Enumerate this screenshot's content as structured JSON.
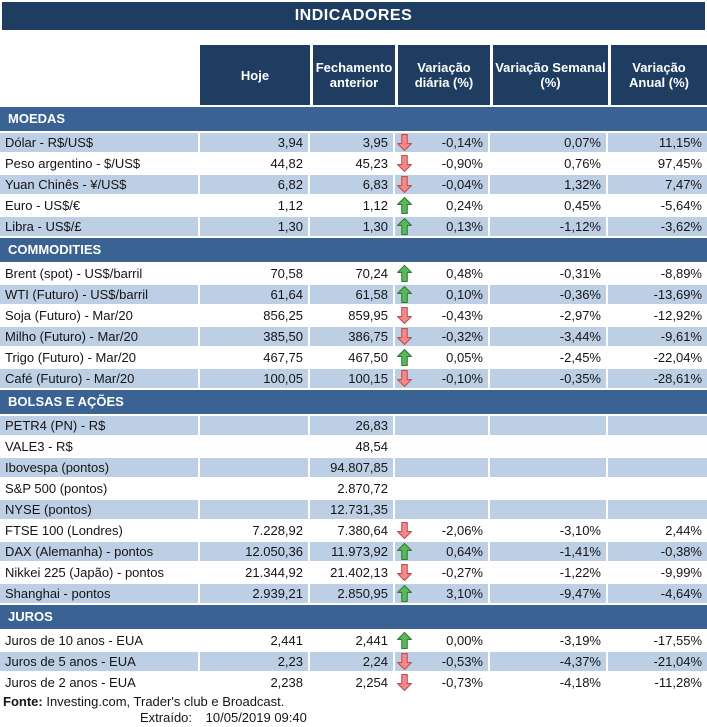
{
  "title": "INDICADORES",
  "table": {
    "columns": [
      "Hoje",
      "Fechamento anterior",
      "Variação diária (%)",
      "Variação Semanal (%)",
      "Variação Anual (%)"
    ],
    "sections": [
      {
        "name": "MOEDAS",
        "rows": [
          {
            "label": "Dólar - R$/US$",
            "hoje": "3,94",
            "fechamento": "3,95",
            "arrow": "down",
            "var_diaria": "-0,14%",
            "var_semanal": "0,07%",
            "var_anual": "11,15%",
            "shaded": true
          },
          {
            "label": "Peso argentino - $/US$",
            "hoje": "44,82",
            "fechamento": "45,23",
            "arrow": "down",
            "var_diaria": "-0,90%",
            "var_semanal": "0,76%",
            "var_anual": "97,45%",
            "shaded": false
          },
          {
            "label": "Yuan Chinês - ¥/US$",
            "hoje": "6,82",
            "fechamento": "6,83",
            "arrow": "down",
            "var_diaria": "-0,04%",
            "var_semanal": "1,32%",
            "var_anual": "7,47%",
            "shaded": true
          },
          {
            "label": "Euro - US$/€",
            "hoje": "1,12",
            "fechamento": "1,12",
            "arrow": "up",
            "var_diaria": "0,24%",
            "var_semanal": "0,45%",
            "var_anual": "-5,64%",
            "shaded": false
          },
          {
            "label": "Libra - US$/£",
            "hoje": "1,30",
            "fechamento": "1,30",
            "arrow": "up",
            "var_diaria": "0,13%",
            "var_semanal": "-1,12%",
            "var_anual": "-3,62%",
            "shaded": true
          }
        ]
      },
      {
        "name": "COMMODITIES",
        "rows": [
          {
            "label": "Brent (spot) - US$/barril",
            "hoje": "70,58",
            "fechamento": "70,24",
            "arrow": "up",
            "var_diaria": "0,48%",
            "var_semanal": "-0,31%",
            "var_anual": "-8,89%",
            "shaded": false
          },
          {
            "label": "WTI (Futuro) - US$/barril",
            "hoje": "61,64",
            "fechamento": "61,58",
            "arrow": "up",
            "var_diaria": "0,10%",
            "var_semanal": "-0,36%",
            "var_anual": "-13,69%",
            "shaded": true
          },
          {
            "label": "Soja (Futuro) - Mar/20",
            "hoje": "856,25",
            "fechamento": "859,95",
            "arrow": "down",
            "var_diaria": "-0,43%",
            "var_semanal": "-2,97%",
            "var_anual": "-12,92%",
            "shaded": false
          },
          {
            "label": "Milho (Futuro) - Mar/20",
            "hoje": "385,50",
            "fechamento": "386,75",
            "arrow": "down",
            "var_diaria": "-0,32%",
            "var_semanal": "-3,44%",
            "var_anual": "-9,61%",
            "shaded": true
          },
          {
            "label": "Trigo (Futuro) - Mar/20",
            "hoje": "467,75",
            "fechamento": "467,50",
            "arrow": "up",
            "var_diaria": "0,05%",
            "var_semanal": "-2,45%",
            "var_anual": "-22,04%",
            "shaded": false
          },
          {
            "label": "Café (Futuro) - Mar/20",
            "hoje": "100,05",
            "fechamento": "100,15",
            "arrow": "down",
            "var_diaria": "-0,10%",
            "var_semanal": "-0,35%",
            "var_anual": "-28,61%",
            "shaded": true
          }
        ]
      },
      {
        "name": "BOLSAS E AÇÕES",
        "rows": [
          {
            "label": "PETR4 (PN) - R$",
            "hoje": "",
            "fechamento": "26,83",
            "arrow": "",
            "var_diaria": "",
            "var_semanal": "",
            "var_anual": "",
            "shaded": true
          },
          {
            "label": "VALE3 - R$",
            "hoje": "",
            "fechamento": "48,54",
            "arrow": "",
            "var_diaria": "",
            "var_semanal": "",
            "var_anual": "",
            "shaded": false
          },
          {
            "label": "Ibovespa (pontos)",
            "hoje": "",
            "fechamento": "94.807,85",
            "arrow": "",
            "var_diaria": "",
            "var_semanal": "",
            "var_anual": "",
            "shaded": true
          },
          {
            "label": "S&P 500 (pontos)",
            "hoje": "",
            "fechamento": "2.870,72",
            "arrow": "",
            "var_diaria": "",
            "var_semanal": "",
            "var_anual": "",
            "shaded": false
          },
          {
            "label": "NYSE (pontos)",
            "hoje": "",
            "fechamento": "12.731,35",
            "arrow": "",
            "var_diaria": "",
            "var_semanal": "",
            "var_anual": "",
            "shaded": true
          },
          {
            "label": "FTSE 100 (Londres)",
            "hoje": "7.228,92",
            "fechamento": "7.380,64",
            "arrow": "down",
            "var_diaria": "-2,06%",
            "var_semanal": "-3,10%",
            "var_anual": "2,44%",
            "shaded": false
          },
          {
            "label": "DAX (Alemanha) - pontos",
            "hoje": "12.050,36",
            "fechamento": "11.973,92",
            "arrow": "up",
            "var_diaria": "0,64%",
            "var_semanal": "-1,41%",
            "var_anual": "-0,38%",
            "shaded": true
          },
          {
            "label": "Nikkei 225 (Japão) - pontos",
            "hoje": "21.344,92",
            "fechamento": "21.402,13",
            "arrow": "down",
            "var_diaria": "-0,27%",
            "var_semanal": "-1,22%",
            "var_anual": "-9,99%",
            "shaded": false
          },
          {
            "label": "Shanghai - pontos",
            "hoje": "2.939,21",
            "fechamento": "2.850,95",
            "arrow": "up",
            "var_diaria": "3,10%",
            "var_semanal": "-9,47%",
            "var_anual": "-4,64%",
            "shaded": true
          }
        ]
      },
      {
        "name": "JUROS",
        "rows": [
          {
            "label": "Juros de 10 anos - EUA",
            "hoje": "2,441",
            "fechamento": "2,441",
            "arrow": "up",
            "var_diaria": "0,00%",
            "var_semanal": "-3,19%",
            "var_anual": "-17,55%",
            "shaded": false
          },
          {
            "label": "Juros de 5 anos - EUA",
            "hoje": "2,23",
            "fechamento": "2,24",
            "arrow": "down",
            "var_diaria": "-0,53%",
            "var_semanal": "-4,37%",
            "var_anual": "-21,04%",
            "shaded": true
          },
          {
            "label": "Juros de 2 anos - EUA",
            "hoje": "2,238",
            "fechamento": "2,254",
            "arrow": "down",
            "var_diaria": "-0,73%",
            "var_semanal": "-4,18%",
            "var_anual": "-11,28%",
            "shaded": false
          }
        ]
      }
    ]
  },
  "footer": {
    "source_label": "Fonte:",
    "source_text": "Investing.com, Trader's club e Broadcast.",
    "extracted_label": "Extraído:",
    "extracted_value": "10/05/2019 09:40"
  },
  "icons": {
    "up": "up-arrow-icon",
    "down": "down-arrow-icon"
  },
  "colors": {
    "navy": "#1F3C61",
    "steel": "#3A6292",
    "row_shaded": "#BDCFE5",
    "up_arrow_fill": "#5BB75B",
    "up_arrow_border": "#2F7D32",
    "down_arrow_fill": "#F4898B",
    "down_arrow_border": "#C0504D"
  }
}
